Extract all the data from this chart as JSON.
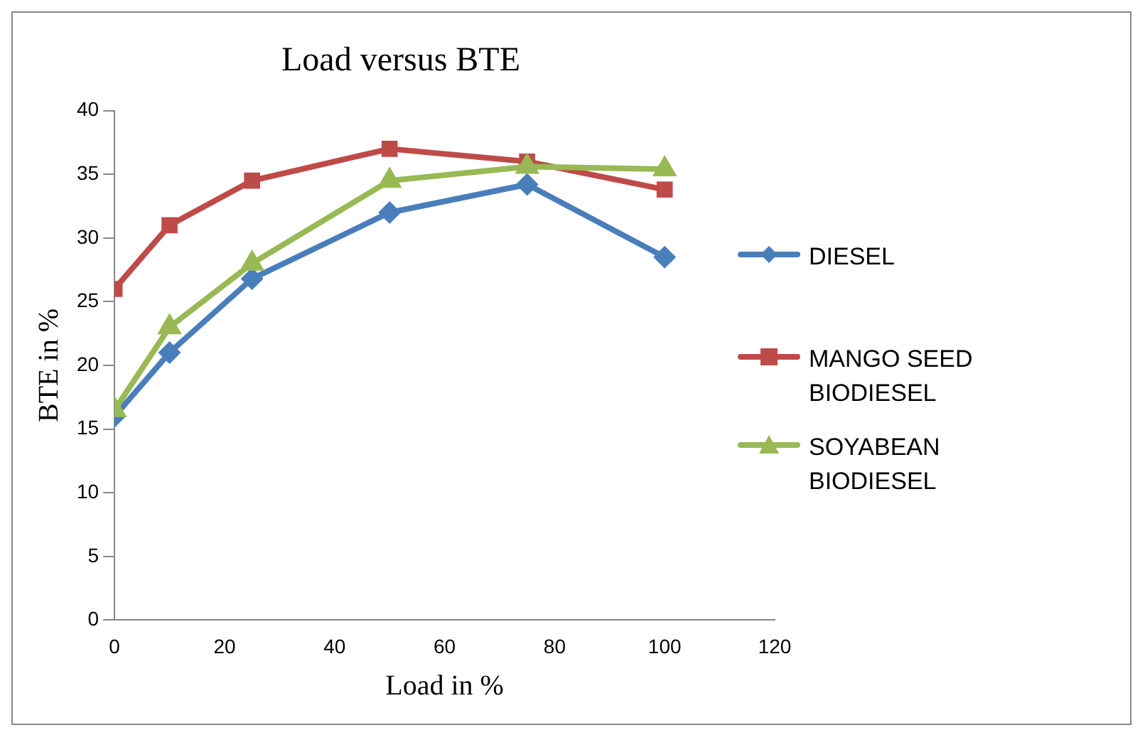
{
  "chart_data": {
    "type": "line",
    "title": "Load versus BTE",
    "xlabel": "Load in %",
    "ylabel": "BTE in %",
    "x": [
      0,
      10,
      25,
      50,
      75,
      100
    ],
    "series": [
      {
        "name": "DIESEL",
        "color": "#4a7ebb",
        "marker": "diamond",
        "values": [
          16,
          21,
          26.8,
          32,
          34.2,
          28.5
        ]
      },
      {
        "name": "MANGO SEED BIODIESEL",
        "color": "#be4b48",
        "marker": "square",
        "values": [
          26,
          31,
          34.5,
          37,
          36,
          33.8
        ]
      },
      {
        "name": "SOYABEAN BIODIESEL",
        "color": "#98b954",
        "marker": "triangle",
        "values": [
          16.5,
          23,
          28,
          34.5,
          35.6,
          35.4
        ]
      }
    ],
    "xlim": [
      0,
      120
    ],
    "xticks": [
      0,
      20,
      40,
      60,
      80,
      100,
      120
    ],
    "ylim": [
      0,
      40
    ],
    "yticks": [
      0,
      5,
      10,
      15,
      20,
      25,
      30,
      35,
      40
    ],
    "grid": false,
    "legend": "right",
    "line_style": "solid"
  }
}
